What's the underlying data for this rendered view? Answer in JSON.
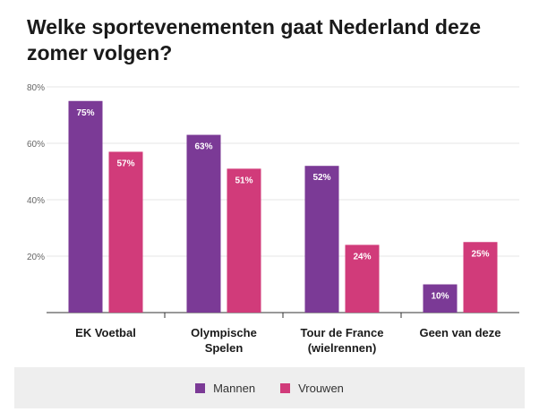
{
  "title": "Welke sportevenementen gaat Nederland deze zomer volgen?",
  "chart_data": {
    "type": "bar",
    "categories": [
      "EK Voetbal",
      "Olympische Spelen",
      "Tour de France (wielrennen)",
      "Geen van deze"
    ],
    "category_lines": [
      [
        "EK Voetbal"
      ],
      [
        "Olympische",
        "Spelen"
      ],
      [
        "Tour de France",
        "(wielrennen)"
      ],
      [
        "Geen van deze"
      ]
    ],
    "series": [
      {
        "name": "Mannen",
        "values": [
          75,
          63,
          52,
          10
        ],
        "labels": [
          "75%",
          "63%",
          "52%",
          "10%"
        ],
        "color": "#7b3a96"
      },
      {
        "name": "Vrouwen",
        "values": [
          57,
          51,
          24,
          25
        ],
        "labels": [
          "57%",
          "51%",
          "24%",
          "25%"
        ],
        "color": "#d13b7a"
      }
    ],
    "ylim": [
      0,
      80
    ],
    "yticks": [
      20,
      40,
      60,
      80
    ],
    "ytick_labels": [
      "20%",
      "40%",
      "60%",
      "80%"
    ],
    "grid": true,
    "legend_position": "bottom"
  }
}
